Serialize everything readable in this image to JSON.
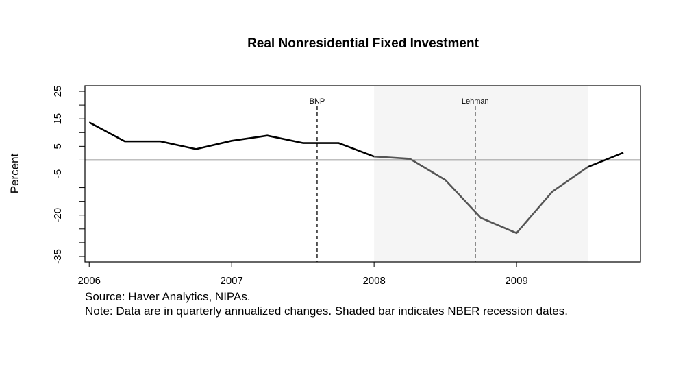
{
  "chart_data": {
    "type": "line",
    "title": "Real Nonresidential Fixed Investment",
    "ylabel": "Percent",
    "xlabel": "",
    "x_tick_labels": [
      "2006",
      "2007",
      "2008",
      "2009"
    ],
    "x_tick_values": [
      2006,
      2007,
      2008,
      2009
    ],
    "y_tick_labels": [
      "25",
      "15",
      "5",
      "-5",
      "-20",
      "-35"
    ],
    "y_tick_values": [
      25,
      15,
      5,
      -5,
      -20,
      -35
    ],
    "xlim": [
      2005.97,
      2009.87
    ],
    "ylim": [
      -37,
      27
    ],
    "grid": false,
    "x": [
      2006.0,
      2006.25,
      2006.5,
      2006.75,
      2007.0,
      2007.25,
      2007.5,
      2007.75,
      2008.0,
      2008.25,
      2008.5,
      2008.75,
      2009.0,
      2009.25,
      2009.5,
      2009.75
    ],
    "series": [
      {
        "values": [
          13.7,
          6.8,
          6.8,
          4.0,
          7.0,
          8.9,
          6.2,
          6.2,
          1.3,
          0.5,
          -7.2,
          -21.0,
          -26.5,
          -11.5,
          -2.5,
          2.7
        ],
        "color": "#000000",
        "recession_color": "#555555"
      }
    ],
    "recession": {
      "start": 2008.0,
      "end": 2009.5,
      "color": "#f5f5f5"
    },
    "zero_line": 0,
    "annotations": [
      {
        "label": "BNP",
        "x": 2007.6
      },
      {
        "label": "Lehman",
        "x": 2008.71
      }
    ]
  },
  "notes": {
    "source": "Source: Haver Analytics, NIPAs.",
    "note": "Note: Data are in quarterly annualized changes. Shaded bar indicates NBER recession dates."
  }
}
